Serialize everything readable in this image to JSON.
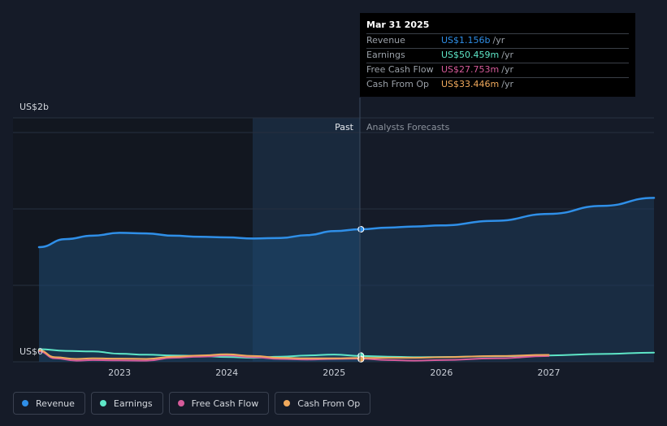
{
  "chart_data": {
    "type": "line",
    "ylabel_top": "US$2b",
    "ylabel_bottom": "US$0",
    "ylim": [
      0,
      2
    ],
    "y_unit": "US$b",
    "x_ticks": [
      "2023",
      "2024",
      "2025",
      "2026",
      "2027"
    ],
    "xlim": [
      2022.25,
      2027.98
    ],
    "divider_x": 2025.25,
    "past_label": "Past",
    "forecast_label": "Analysts Forecasts",
    "series": [
      {
        "name": "Revenue",
        "color": "#2f8fe8",
        "area": true,
        "points": [
          [
            2022.25,
            1.0
          ],
          [
            2022.5,
            1.07
          ],
          [
            2022.75,
            1.1
          ],
          [
            2023.0,
            1.125
          ],
          [
            2023.25,
            1.12
          ],
          [
            2023.5,
            1.1
          ],
          [
            2023.75,
            1.09
          ],
          [
            2024.0,
            1.085
          ],
          [
            2024.25,
            1.075
          ],
          [
            2024.5,
            1.08
          ],
          [
            2024.75,
            1.105
          ],
          [
            2025.0,
            1.14
          ],
          [
            2025.25,
            1.156
          ]
        ],
        "forecast": [
          [
            2025.25,
            1.156
          ],
          [
            2025.5,
            1.17
          ],
          [
            2025.75,
            1.18
          ],
          [
            2026.0,
            1.19
          ],
          [
            2026.5,
            1.23
          ],
          [
            2027.0,
            1.29
          ],
          [
            2027.5,
            1.36
          ],
          [
            2027.98,
            1.43
          ]
        ]
      },
      {
        "name": "Earnings",
        "color": "#5ee6c7",
        "points": [
          [
            2022.25,
            0.11
          ],
          [
            2022.5,
            0.095
          ],
          [
            2022.75,
            0.09
          ],
          [
            2023.0,
            0.07
          ],
          [
            2023.25,
            0.062
          ],
          [
            2023.5,
            0.055
          ],
          [
            2023.75,
            0.05
          ],
          [
            2024.0,
            0.042
          ],
          [
            2024.25,
            0.035
          ],
          [
            2024.5,
            0.045
          ],
          [
            2024.75,
            0.055
          ],
          [
            2025.0,
            0.063
          ],
          [
            2025.25,
            0.05
          ]
        ],
        "forecast": [
          [
            2025.25,
            0.05
          ],
          [
            2025.5,
            0.045
          ],
          [
            2025.75,
            0.04
          ],
          [
            2026.0,
            0.042
          ],
          [
            2026.5,
            0.048
          ],
          [
            2027.0,
            0.055
          ],
          [
            2027.5,
            0.068
          ],
          [
            2027.98,
            0.08
          ]
        ]
      },
      {
        "name": "Free Cash Flow",
        "color": "#d65b9a",
        "points": [
          [
            2022.25,
            0.09
          ],
          [
            2022.4,
            0.03
          ],
          [
            2022.6,
            0.01
          ],
          [
            2022.75,
            0.015
          ],
          [
            2023.0,
            0.012
          ],
          [
            2023.25,
            0.01
          ],
          [
            2023.5,
            0.035
          ],
          [
            2023.75,
            0.045
          ],
          [
            2024.0,
            0.055
          ],
          [
            2024.25,
            0.04
          ],
          [
            2024.5,
            0.025
          ],
          [
            2024.75,
            0.02
          ],
          [
            2025.0,
            0.025
          ],
          [
            2025.25,
            0.028
          ]
        ],
        "forecast": [
          [
            2025.25,
            0.028
          ],
          [
            2025.5,
            0.015
          ],
          [
            2025.75,
            0.01
          ],
          [
            2026.0,
            0.015
          ],
          [
            2026.5,
            0.03
          ],
          [
            2027.0,
            0.05
          ]
        ]
      },
      {
        "name": "Cash From Op",
        "color": "#f0a95c",
        "points": [
          [
            2022.25,
            0.1
          ],
          [
            2022.4,
            0.04
          ],
          [
            2022.6,
            0.025
          ],
          [
            2022.75,
            0.03
          ],
          [
            2023.0,
            0.028
          ],
          [
            2023.25,
            0.025
          ],
          [
            2023.5,
            0.045
          ],
          [
            2023.75,
            0.055
          ],
          [
            2024.0,
            0.065
          ],
          [
            2024.25,
            0.05
          ],
          [
            2024.5,
            0.035
          ],
          [
            2024.75,
            0.03
          ],
          [
            2025.0,
            0.03
          ],
          [
            2025.25,
            0.033
          ]
        ],
        "forecast": [
          [
            2025.25,
            0.033
          ],
          [
            2025.5,
            0.035
          ],
          [
            2025.75,
            0.035
          ],
          [
            2026.0,
            0.04
          ],
          [
            2026.5,
            0.05
          ],
          [
            2027.0,
            0.06
          ]
        ]
      }
    ]
  },
  "tooltip": {
    "date": "Mar 31 2025",
    "rows": [
      {
        "label": "Revenue",
        "value": "US$1.156b",
        "unit": "/yr",
        "color": "#2f8fe8"
      },
      {
        "label": "Earnings",
        "value": "US$50.459m",
        "unit": "/yr",
        "color": "#5ee6c7"
      },
      {
        "label": "Free Cash Flow",
        "value": "US$27.753m",
        "unit": "/yr",
        "color": "#d65b9a"
      },
      {
        "label": "Cash From Op",
        "value": "US$33.446m",
        "unit": "/yr",
        "color": "#f0a95c"
      }
    ]
  },
  "legend": [
    {
      "label": "Revenue",
      "color": "#2f8fe8"
    },
    {
      "label": "Earnings",
      "color": "#5ee6c7"
    },
    {
      "label": "Free Cash Flow",
      "color": "#d65b9a"
    },
    {
      "label": "Cash From Op",
      "color": "#f0a95c"
    }
  ]
}
